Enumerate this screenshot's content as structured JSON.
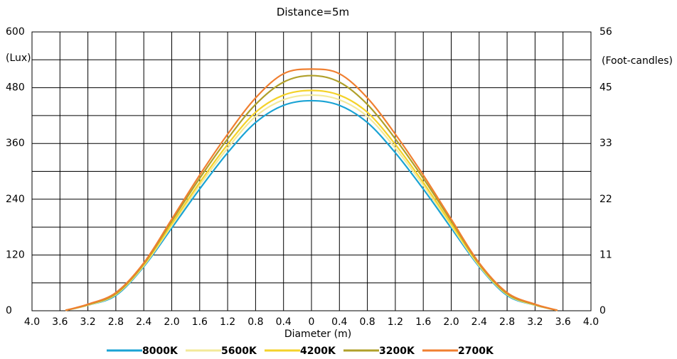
{
  "chart_data": {
    "type": "line",
    "title": "Distance=5m",
    "xlabel": "Diameter (m)",
    "ylabel_left": "(Lux)",
    "ylabel_right": "(Foot-candles)",
    "x_ticks": [
      -4.0,
      -3.6,
      -3.2,
      -2.8,
      -2.4,
      -2.0,
      -1.6,
      -1.2,
      -0.8,
      -0.4,
      0,
      0.4,
      0.8,
      1.2,
      1.6,
      2.0,
      2.4,
      2.8,
      3.2,
      3.6,
      4.0
    ],
    "x_tick_labels": [
      "4.0",
      "3.6",
      "3.2",
      "2.8",
      "2.4",
      "2.0",
      "1.6",
      "1.2",
      "0.8",
      "0.4",
      "0",
      "0.4",
      "0.8",
      "1.2",
      "1.6",
      "2.0",
      "2.4",
      "2.8",
      "3.2",
      "3.6",
      "4.0"
    ],
    "xlim": [
      -4.0,
      4.0
    ],
    "ylim": [
      0,
      600
    ],
    "y_left_ticks": [
      0,
      120,
      240,
      360,
      480,
      600
    ],
    "y_left_tick_labels": [
      "0",
      "120",
      "240",
      "360",
      "480",
      "600"
    ],
    "y_right_ticks": [
      0,
      120,
      240,
      360,
      480,
      600
    ],
    "y_right_tick_labels": [
      "0",
      "11",
      "22",
      "33",
      "45",
      "56"
    ],
    "grid_y_lines": [
      0,
      60,
      120,
      180,
      240,
      300,
      360,
      420,
      480,
      540,
      600
    ],
    "grid": true,
    "legend_placement": "bottom",
    "x": [
      -3.52,
      -3.2,
      -2.8,
      -2.4,
      -2.0,
      -1.6,
      -1.2,
      -0.8,
      -0.4,
      0,
      0.4,
      0.8,
      1.2,
      1.6,
      2.0,
      2.4,
      2.8,
      3.2,
      3.52
    ],
    "series": [
      {
        "name": "8000K",
        "color": "#1aa3d4",
        "values": [
          1,
          12,
          33,
          95,
          178,
          262,
          340,
          405,
          442,
          452,
          442,
          405,
          340,
          262,
          178,
          95,
          33,
          12,
          1
        ]
      },
      {
        "name": "5600K",
        "color": "#f3e99a",
        "values": [
          1,
          12,
          35,
          97,
          183,
          270,
          350,
          418,
          454,
          464,
          454,
          418,
          350,
          270,
          183,
          97,
          35,
          12,
          1
        ]
      },
      {
        "name": "4200K",
        "color": "#f4d22a",
        "values": [
          1,
          13,
          36,
          99,
          187,
          276,
          358,
          427,
          464,
          474,
          464,
          427,
          358,
          276,
          187,
          99,
          36,
          13,
          1
        ]
      },
      {
        "name": "3200K",
        "color": "#b0a02a",
        "values": [
          1,
          13,
          37,
          101,
          193,
          285,
          370,
          444,
          492,
          506,
          492,
          444,
          370,
          285,
          193,
          101,
          37,
          13,
          1
        ]
      },
      {
        "name": "2700K",
        "color": "#f07f30",
        "values": [
          1,
          14,
          39,
          103,
          197,
          292,
          380,
          458,
          510,
          520,
          510,
          458,
          380,
          292,
          197,
          103,
          39,
          14,
          1
        ]
      }
    ]
  }
}
